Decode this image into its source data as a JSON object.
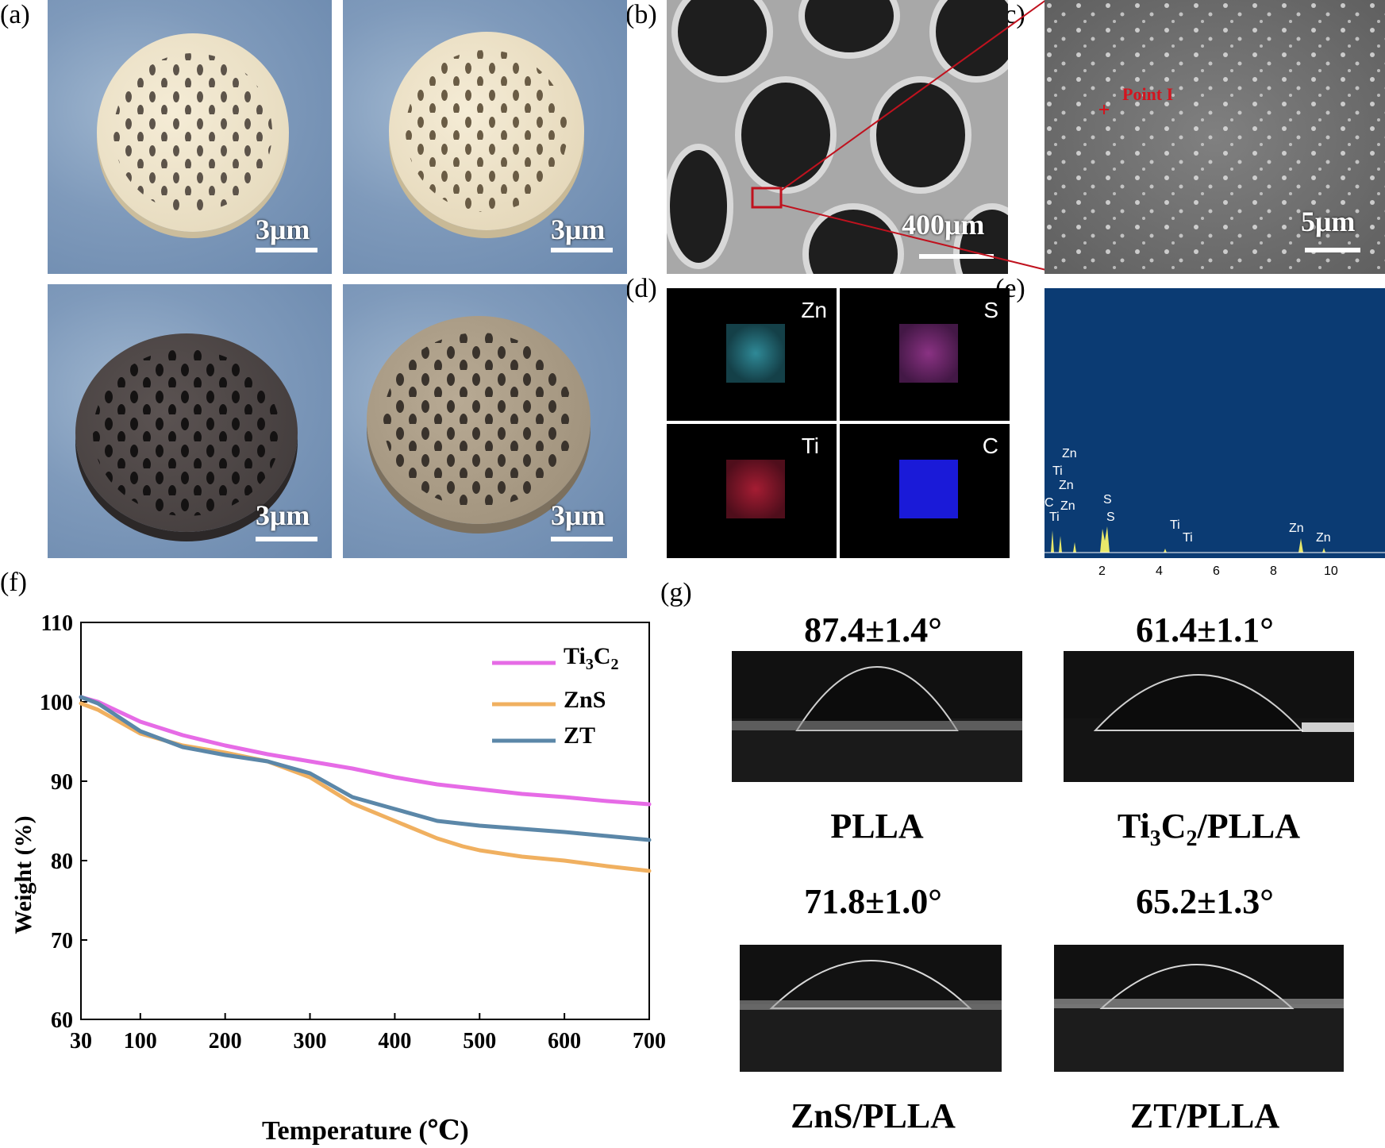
{
  "panels": {
    "a": "(a)",
    "b": "(b)",
    "c": "(c)",
    "d": "(d)",
    "e": "(e)",
    "f": "(f)",
    "g": "(g)"
  },
  "photos": {
    "scale_labels": [
      "3μm",
      "3μm",
      "3μm",
      "3μm"
    ]
  },
  "sem": {
    "b_scale": "400μm",
    "c_scale": "5μm",
    "c_point": "Point I"
  },
  "mapping": {
    "elements": [
      "Zn",
      "S",
      "Ti",
      "C"
    ],
    "colors": [
      "#3fb7c9",
      "#a23b9a",
      "#c2223c",
      "#1a1ad8"
    ]
  },
  "eds": {
    "peak_labels": [
      "Zn",
      "Ti",
      "Zn",
      "C",
      "Ti",
      "Zn",
      "S",
      "S",
      "Ti",
      "Ti",
      "Zn",
      "Zn"
    ],
    "ticks": [
      "2",
      "4",
      "6",
      "8",
      "10"
    ]
  },
  "chart_data": {
    "type": "line",
    "xlabel": "Temperature (℃)",
    "ylabel": "Weight (%)",
    "xlim": [
      30,
      700
    ],
    "ylim": [
      60,
      110
    ],
    "xticks": [
      30,
      100,
      200,
      300,
      400,
      500,
      600,
      700
    ],
    "yticks": [
      60,
      70,
      80,
      90,
      100,
      110
    ],
    "legend_position": "top-right",
    "series": [
      {
        "name": "Ti3C2",
        "color": "#e66be6",
        "x": [
          30,
          50,
          100,
          150,
          200,
          250,
          300,
          350,
          400,
          450,
          500,
          550,
          600,
          650,
          700
        ],
        "y": [
          100.6,
          100.0,
          97.5,
          95.8,
          94.5,
          93.4,
          92.5,
          91.6,
          90.5,
          89.6,
          89.0,
          88.4,
          88.0,
          87.5,
          87.1
        ]
      },
      {
        "name": "ZnS",
        "color": "#f0b060",
        "x": [
          30,
          50,
          100,
          150,
          200,
          250,
          300,
          350,
          400,
          450,
          480,
          500,
          550,
          600,
          650,
          700
        ],
        "y": [
          99.8,
          99.0,
          96.0,
          94.5,
          93.6,
          92.5,
          90.5,
          87.2,
          85.0,
          82.8,
          81.8,
          81.3,
          80.5,
          80.0,
          79.3,
          78.7
        ]
      },
      {
        "name": "ZT",
        "color": "#5b87a8",
        "x": [
          30,
          50,
          100,
          150,
          200,
          250,
          300,
          350,
          400,
          450,
          500,
          550,
          600,
          650,
          700
        ],
        "y": [
          100.6,
          99.8,
          96.3,
          94.3,
          93.3,
          92.5,
          91.0,
          88.0,
          86.5,
          85.0,
          84.4,
          84.0,
          83.6,
          83.1,
          82.6
        ]
      }
    ],
    "legend_labels": [
      "Ti",
      "3",
      "C",
      "2",
      "ZnS",
      "ZT"
    ]
  },
  "contact_angle": {
    "items": [
      {
        "angle": "87.4±1.4°",
        "sample": "PLLA"
      },
      {
        "angle": "61.4±1.1°",
        "sample_parts": [
          "Ti",
          "3",
          "C",
          "2",
          "/PLLA"
        ]
      },
      {
        "angle": "71.8±1.0°",
        "sample": "ZnS/PLLA"
      },
      {
        "angle": "65.2±1.3°",
        "sample": "ZT/PLLA"
      }
    ]
  }
}
